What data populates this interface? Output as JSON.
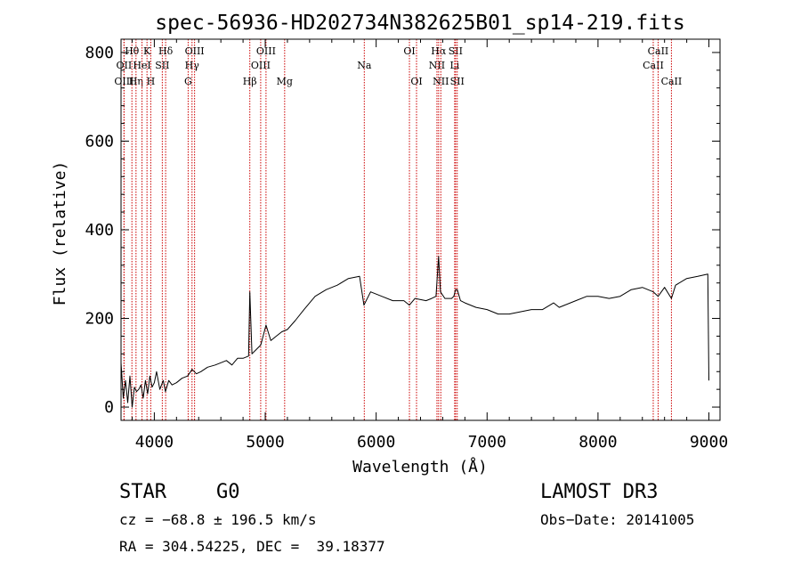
{
  "chart_data": {
    "type": "line",
    "title": "spec-56936-HD202734N382625B01_sp14-219.fits",
    "xlabel": "Wavelength (Å)",
    "ylabel": "Flux (relative)",
    "xlim": [
      3700,
      9100
    ],
    "ylim": [
      -30,
      830
    ],
    "x_ticks": [
      4000,
      5000,
      6000,
      7000,
      8000,
      9000
    ],
    "y_ticks": [
      0,
      200,
      400,
      600,
      800
    ],
    "grid": false,
    "spectrum": {
      "name": "flux",
      "x": [
        3700,
        3720,
        3740,
        3760,
        3780,
        3800,
        3820,
        3840,
        3860,
        3880,
        3900,
        3920,
        3940,
        3960,
        3980,
        4000,
        4020,
        4050,
        4080,
        4100,
        4130,
        4160,
        4200,
        4250,
        4300,
        4340,
        4380,
        4420,
        4480,
        4550,
        4600,
        4650,
        4700,
        4750,
        4800,
        4850,
        4861,
        4880,
        4920,
        4960,
        5007,
        5050,
        5100,
        5150,
        5200,
        5270,
        5350,
        5450,
        5550,
        5650,
        5750,
        5850,
        5890,
        5950,
        6050,
        6150,
        6250,
        6300,
        6350,
        6450,
        6500,
        6540,
        6563,
        6580,
        6620,
        6680,
        6700,
        6716,
        6731,
        6760,
        6800,
        6900,
        7000,
        7100,
        7200,
        7300,
        7400,
        7500,
        7600,
        7650,
        7700,
        7800,
        7900,
        8000,
        8100,
        8200,
        8300,
        8400,
        8498,
        8542,
        8600,
        8662,
        8700,
        8800,
        8900,
        8990,
        9000
      ],
      "y": [
        100,
        20,
        60,
        10,
        70,
        0,
        45,
        35,
        40,
        50,
        20,
        60,
        30,
        70,
        45,
        55,
        80,
        40,
        60,
        35,
        60,
        50,
        55,
        65,
        70,
        85,
        75,
        80,
        90,
        95,
        100,
        105,
        95,
        110,
        110,
        115,
        260,
        120,
        130,
        140,
        185,
        150,
        160,
        170,
        175,
        195,
        220,
        250,
        265,
        275,
        290,
        295,
        230,
        260,
        250,
        240,
        240,
        230,
        245,
        240,
        245,
        250,
        340,
        260,
        245,
        245,
        250,
        265,
        265,
        240,
        235,
        225,
        220,
        210,
        210,
        215,
        220,
        220,
        235,
        225,
        230,
        240,
        250,
        250,
        245,
        250,
        265,
        270,
        260,
        250,
        270,
        245,
        275,
        290,
        295,
        300,
        60
      ]
    },
    "spectral_lines": [
      {
        "label": "Hθ",
        "wavelength": 3798,
        "row": 1
      },
      {
        "label": "OII",
        "wavelength": 3727,
        "row": 2
      },
      {
        "label": "OIII",
        "wavelength": 3727,
        "row": 3
      },
      {
        "label": "Hη",
        "wavelength": 3835,
        "row": 3
      },
      {
        "label": "HeI",
        "wavelength": 3889,
        "row": 2
      },
      {
        "label": "K",
        "wavelength": 3934,
        "row": 1
      },
      {
        "label": "H",
        "wavelength": 3968,
        "row": 3
      },
      {
        "label": "SII",
        "wavelength": 4072,
        "row": 2
      },
      {
        "label": "Hδ",
        "wavelength": 4102,
        "row": 1
      },
      {
        "label": "G",
        "wavelength": 4305,
        "row": 3
      },
      {
        "label": "Hγ",
        "wavelength": 4340,
        "row": 2
      },
      {
        "label": "OIII",
        "wavelength": 4363,
        "row": 1
      },
      {
        "label": "Hβ",
        "wavelength": 4861,
        "row": 3
      },
      {
        "label": "OIII",
        "wavelength": 4959,
        "row": 2
      },
      {
        "label": "OIII",
        "wavelength": 5007,
        "row": 1
      },
      {
        "label": "Mg",
        "wavelength": 5175,
        "row": 3
      },
      {
        "label": "Na",
        "wavelength": 5893,
        "row": 2
      },
      {
        "label": "OI",
        "wavelength": 6300,
        "row": 1
      },
      {
        "label": "OI",
        "wavelength": 6364,
        "row": 3
      },
      {
        "label": "NII",
        "wavelength": 6548,
        "row": 2
      },
      {
        "label": "Hα",
        "wavelength": 6563,
        "row": 1
      },
      {
        "label": "NII",
        "wavelength": 6583,
        "row": 3
      },
      {
        "label": "Li",
        "wavelength": 6708,
        "row": 2
      },
      {
        "label": "SII",
        "wavelength": 6716,
        "row": 1
      },
      {
        "label": "SII",
        "wavelength": 6731,
        "row": 3
      },
      {
        "label": "CaII",
        "wavelength": 8498,
        "row": 2
      },
      {
        "label": "CaII",
        "wavelength": 8542,
        "row": 1
      },
      {
        "label": "CaII",
        "wavelength": 8662,
        "row": 3
      }
    ],
    "line_color": "#000000",
    "marker_color": "#cc0000"
  },
  "info": {
    "class": "STAR",
    "subclass": "G0",
    "survey": "LAMOST DR3",
    "cz": "cz = −68.8 ± 196.5 km/s",
    "obs_date": "Obs−Date: 20141005",
    "coords": "RA = 304.54225, DEC =  39.18377"
  }
}
